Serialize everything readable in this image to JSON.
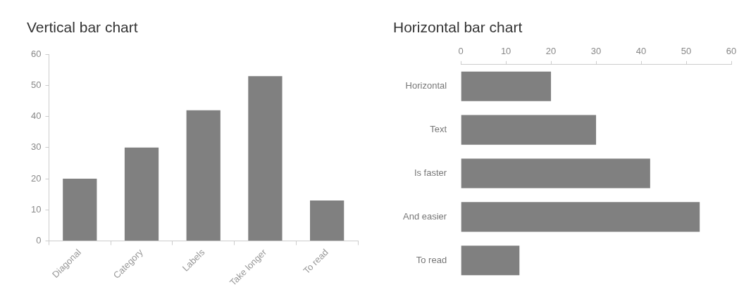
{
  "chart_data": [
    {
      "type": "bar",
      "title": "Vertical bar chart",
      "categories": [
        "Diagonal",
        "Category",
        "Labels",
        "Take longer",
        "To read"
      ],
      "values": [
        20,
        30,
        42,
        53,
        13
      ],
      "color": "#808080",
      "ylim": [
        0,
        60
      ],
      "yticks": [
        0,
        10,
        20,
        30,
        40,
        50,
        60
      ]
    },
    {
      "type": "bar",
      "title": "Horizontal bar chart",
      "orientation": "horizontal",
      "categories": [
        "Horizontal",
        "Text",
        "Is faster",
        "And easier",
        "To read"
      ],
      "values": [
        20,
        30,
        42,
        53,
        13
      ],
      "color": "#808080",
      "xlim": [
        0,
        60
      ],
      "xticks": [
        0,
        10,
        20,
        30,
        40,
        50,
        60
      ]
    }
  ]
}
